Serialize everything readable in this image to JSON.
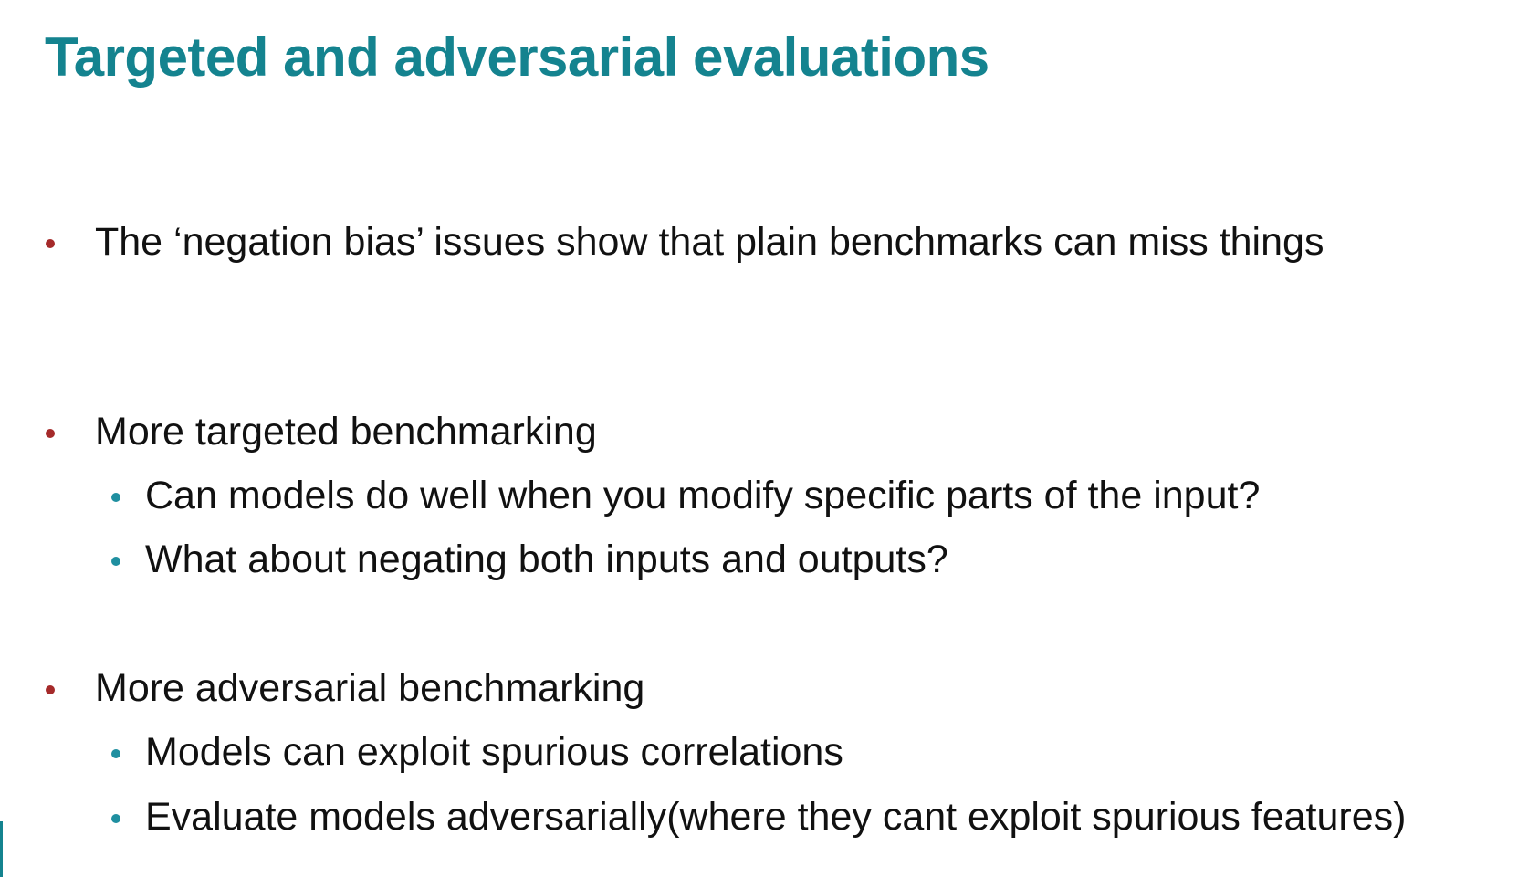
{
  "slide": {
    "title": "Targeted and adversarial evaluations",
    "bullets": [
      {
        "text": "The ‘negation bias’ issues show that plain benchmarks can miss things"
      },
      {
        "text": "More targeted benchmarking",
        "sub": [
          "Can models do well when you modify specific parts of the input?",
          "What about negating both inputs and outputs?"
        ]
      },
      {
        "text": "More adversarial benchmarking",
        "sub": [
          "Models can exploit spurious correlations",
          "Evaluate models adversarially(where they cant exploit spurious features)"
        ]
      }
    ]
  },
  "colors": {
    "title": "#14838f",
    "level1_bullet": "#a52a2a",
    "level2_bullet": "#1f8fa0",
    "text": "#111111"
  }
}
